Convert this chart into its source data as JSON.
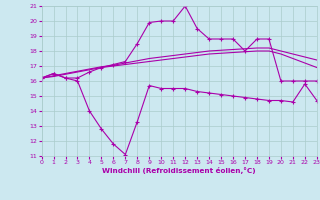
{
  "xlabel": "Windchill (Refroidissement éolien,°C)",
  "x": [
    0,
    1,
    2,
    3,
    4,
    5,
    6,
    7,
    8,
    9,
    10,
    11,
    12,
    13,
    14,
    15,
    16,
    17,
    18,
    19,
    20,
    21,
    22,
    23
  ],
  "actual_line": [
    16.2,
    16.5,
    16.2,
    16.2,
    16.6,
    16.9,
    17.1,
    17.3,
    18.5,
    19.9,
    20.0,
    20.0,
    21.0,
    19.5,
    18.8,
    18.8,
    18.8,
    18.0,
    18.8,
    18.8,
    16.0,
    16.0,
    16.0,
    16.0
  ],
  "windchill_line": [
    16.2,
    16.5,
    16.2,
    16.0,
    14.0,
    12.8,
    11.8,
    11.1,
    13.3,
    15.7,
    15.5,
    15.5,
    15.5,
    15.3,
    15.2,
    15.1,
    15.0,
    14.9,
    14.8,
    14.7,
    14.7,
    14.6,
    15.8,
    14.7
  ],
  "trend_line1": [
    16.2,
    16.3,
    16.45,
    16.6,
    16.75,
    16.9,
    17.0,
    17.1,
    17.2,
    17.3,
    17.4,
    17.5,
    17.6,
    17.7,
    17.8,
    17.85,
    17.9,
    17.95,
    18.0,
    18.0,
    17.8,
    17.5,
    17.2,
    16.9
  ],
  "trend_line2": [
    16.2,
    16.35,
    16.5,
    16.65,
    16.8,
    16.95,
    17.05,
    17.2,
    17.35,
    17.5,
    17.6,
    17.7,
    17.8,
    17.9,
    18.0,
    18.05,
    18.1,
    18.15,
    18.2,
    18.2,
    18.0,
    17.8,
    17.6,
    17.4
  ],
  "line_color": "#aa00aa",
  "bg_color": "#cce8f0",
  "grid_color": "#aacccc",
  "ylim": [
    11,
    21
  ],
  "xlim": [
    0,
    23
  ],
  "yticks": [
    11,
    12,
    13,
    14,
    15,
    16,
    17,
    18,
    19,
    20,
    21
  ],
  "xticks": [
    0,
    1,
    2,
    3,
    4,
    5,
    6,
    7,
    8,
    9,
    10,
    11,
    12,
    13,
    14,
    15,
    16,
    17,
    18,
    19,
    20,
    21,
    22,
    23
  ]
}
